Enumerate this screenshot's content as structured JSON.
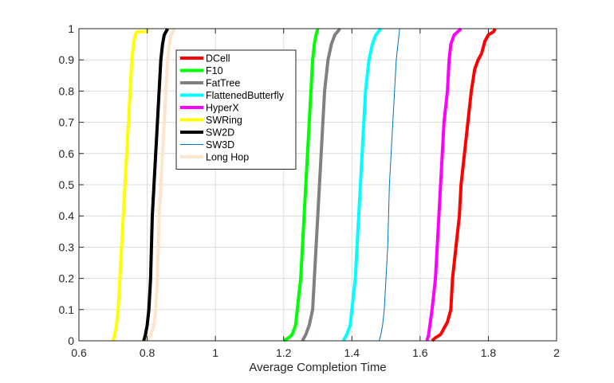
{
  "chart_data": {
    "type": "line",
    "title": "",
    "xlabel": "Average Completion Time",
    "ylabel": "",
    "xlim": [
      0.6,
      2
    ],
    "ylim": [
      0,
      1
    ],
    "xticks": [
      "0.6",
      "0.8",
      "1",
      "1.2",
      "1.4",
      "1.6",
      "1.8",
      "2"
    ],
    "yticks": [
      "0",
      "0.1",
      "0.2",
      "0.3",
      "0.4",
      "0.5",
      "0.6",
      "0.7",
      "0.8",
      "0.9",
      "1"
    ],
    "grid": true,
    "legend_position": "top-left (inside)",
    "series": [
      {
        "name": "DCell",
        "color": "#ff0000",
        "width": "thick",
        "points": [
          [
            1.635,
            0
          ],
          [
            1.645,
            0.01
          ],
          [
            1.66,
            0.02
          ],
          [
            1.67,
            0.04
          ],
          [
            1.68,
            0.06
          ],
          [
            1.69,
            0.1
          ],
          [
            1.695,
            0.2
          ],
          [
            1.705,
            0.3
          ],
          [
            1.715,
            0.4
          ],
          [
            1.72,
            0.5
          ],
          [
            1.73,
            0.6
          ],
          [
            1.74,
            0.7
          ],
          [
            1.75,
            0.8
          ],
          [
            1.76,
            0.87
          ],
          [
            1.77,
            0.9
          ],
          [
            1.78,
            0.92
          ],
          [
            1.79,
            0.96
          ],
          [
            1.8,
            0.98
          ],
          [
            1.815,
            0.99
          ],
          [
            1.82,
            1
          ]
        ]
      },
      {
        "name": "F10",
        "color": "#00ff00",
        "width": "thick",
        "points": [
          [
            1.2,
            0
          ],
          [
            1.215,
            0.01
          ],
          [
            1.225,
            0.02
          ],
          [
            1.235,
            0.05
          ],
          [
            1.24,
            0.1
          ],
          [
            1.25,
            0.2
          ],
          [
            1.26,
            0.4
          ],
          [
            1.265,
            0.5
          ],
          [
            1.27,
            0.6
          ],
          [
            1.275,
            0.7
          ],
          [
            1.28,
            0.8
          ],
          [
            1.285,
            0.9
          ],
          [
            1.29,
            0.95
          ],
          [
            1.295,
            0.98
          ],
          [
            1.3,
            1
          ]
        ]
      },
      {
        "name": "FatTree",
        "color": "#808080",
        "width": "thick",
        "points": [
          [
            1.255,
            0
          ],
          [
            1.265,
            0.02
          ],
          [
            1.275,
            0.05
          ],
          [
            1.285,
            0.1
          ],
          [
            1.29,
            0.2
          ],
          [
            1.3,
            0.4
          ],
          [
            1.305,
            0.5
          ],
          [
            1.31,
            0.6
          ],
          [
            1.315,
            0.7
          ],
          [
            1.32,
            0.8
          ],
          [
            1.33,
            0.9
          ],
          [
            1.34,
            0.95
          ],
          [
            1.35,
            0.98
          ],
          [
            1.365,
            1
          ]
        ]
      },
      {
        "name": "FlattenedButterfly",
        "color": "#00ffff",
        "width": "thick",
        "points": [
          [
            1.375,
            0
          ],
          [
            1.385,
            0.02
          ],
          [
            1.395,
            0.05
          ],
          [
            1.4,
            0.1
          ],
          [
            1.41,
            0.2
          ],
          [
            1.42,
            0.4
          ],
          [
            1.425,
            0.5
          ],
          [
            1.43,
            0.6
          ],
          [
            1.435,
            0.7
          ],
          [
            1.44,
            0.8
          ],
          [
            1.45,
            0.9
          ],
          [
            1.46,
            0.95
          ],
          [
            1.47,
            0.98
          ],
          [
            1.485,
            1
          ]
        ]
      },
      {
        "name": "HyperX",
        "color": "#ff00ff",
        "width": "thick",
        "points": [
          [
            1.62,
            0
          ],
          [
            1.625,
            0.02
          ],
          [
            1.635,
            0.1
          ],
          [
            1.645,
            0.2
          ],
          [
            1.655,
            0.4
          ],
          [
            1.66,
            0.5
          ],
          [
            1.665,
            0.6
          ],
          [
            1.67,
            0.7
          ],
          [
            1.68,
            0.8
          ],
          [
            1.685,
            0.9
          ],
          [
            1.69,
            0.95
          ],
          [
            1.7,
            0.98
          ],
          [
            1.71,
            0.99
          ],
          [
            1.72,
            1
          ]
        ]
      },
      {
        "name": "SWRing",
        "color": "#ffff00",
        "width": "thick",
        "points": [
          [
            0.7,
            0
          ],
          [
            0.705,
            0.02
          ],
          [
            0.71,
            0.05
          ],
          [
            0.715,
            0.1
          ],
          [
            0.72,
            0.2
          ],
          [
            0.725,
            0.3
          ],
          [
            0.73,
            0.4
          ],
          [
            0.735,
            0.5
          ],
          [
            0.74,
            0.6
          ],
          [
            0.745,
            0.7
          ],
          [
            0.75,
            0.8
          ],
          [
            0.755,
            0.9
          ],
          [
            0.76,
            0.95
          ],
          [
            0.765,
            0.98
          ],
          [
            0.77,
            0.99
          ],
          [
            0.8,
            0.99
          ],
          [
            0.8,
            1
          ]
        ]
      },
      {
        "name": "SW2D",
        "color": "#000000",
        "width": "thick",
        "points": [
          [
            0.79,
            0
          ],
          [
            0.795,
            0.02
          ],
          [
            0.8,
            0.05
          ],
          [
            0.805,
            0.1
          ],
          [
            0.81,
            0.2
          ],
          [
            0.815,
            0.4
          ],
          [
            0.82,
            0.5
          ],
          [
            0.825,
            0.6
          ],
          [
            0.83,
            0.7
          ],
          [
            0.835,
            0.8
          ],
          [
            0.84,
            0.9
          ],
          [
            0.845,
            0.95
          ],
          [
            0.85,
            0.98
          ],
          [
            0.86,
            1
          ]
        ]
      },
      {
        "name": "SW3D",
        "color": "#0072bd",
        "width": "thin",
        "points": [
          [
            1.48,
            0
          ],
          [
            1.485,
            0.02
          ],
          [
            1.49,
            0.05
          ],
          [
            1.495,
            0.1
          ],
          [
            1.5,
            0.2
          ],
          [
            1.505,
            0.3
          ],
          [
            1.51,
            0.5
          ],
          [
            1.515,
            0.6
          ],
          [
            1.52,
            0.7
          ],
          [
            1.525,
            0.8
          ],
          [
            1.53,
            0.9
          ],
          [
            1.535,
            0.95
          ],
          [
            1.54,
            1
          ]
        ]
      },
      {
        "name": "Long Hop",
        "color": "#fde4cc",
        "width": "thick",
        "points": [
          [
            0.8,
            0
          ],
          [
            0.81,
            0.02
          ],
          [
            0.82,
            0.05
          ],
          [
            0.825,
            0.1
          ],
          [
            0.83,
            0.2
          ],
          [
            0.835,
            0.4
          ],
          [
            0.84,
            0.5
          ],
          [
            0.845,
            0.6
          ],
          [
            0.85,
            0.7
          ],
          [
            0.855,
            0.8
          ],
          [
            0.86,
            0.9
          ],
          [
            0.865,
            0.95
          ],
          [
            0.87,
            0.98
          ],
          [
            0.88,
            1
          ]
        ]
      }
    ]
  }
}
